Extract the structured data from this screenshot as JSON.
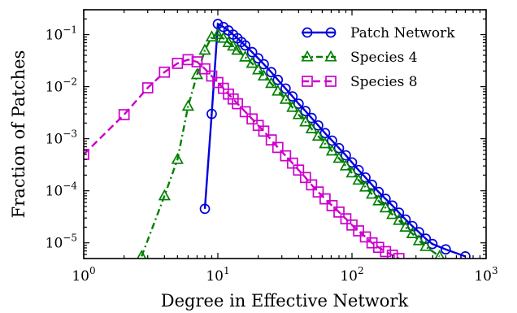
{
  "chart_data": {
    "type": "line",
    "title": "",
    "xlabel": "Degree in Effective Network",
    "ylabel": "Fraction of Patches",
    "xscale": "log",
    "yscale": "log",
    "xlim": [
      1,
      1000
    ],
    "ylim": [
      5e-06,
      0.3
    ],
    "x_ticks": [
      {
        "value": 1,
        "base": "10",
        "exp": "0"
      },
      {
        "value": 10,
        "base": "10",
        "exp": "1"
      },
      {
        "value": 100,
        "base": "10",
        "exp": "2"
      },
      {
        "value": 1000,
        "base": "10",
        "exp": "3"
      }
    ],
    "y_ticks": [
      {
        "value": 1e-05,
        "base": "10",
        "exp": "−5"
      },
      {
        "value": 0.0001,
        "base": "10",
        "exp": "−4"
      },
      {
        "value": 0.001,
        "base": "10",
        "exp": "−3"
      },
      {
        "value": 0.01,
        "base": "10",
        "exp": "−2"
      },
      {
        "value": 0.1,
        "base": "10",
        "exp": "−1"
      }
    ],
    "grid": false,
    "legend_position": "top-right",
    "series": [
      {
        "name": "Patch Network",
        "color": "#0000dd",
        "marker": "circle",
        "line_style": "solid",
        "x": [
          8,
          9,
          10,
          11,
          12,
          13,
          14,
          15,
          16,
          18,
          20,
          22,
          25,
          28,
          32,
          36,
          40,
          45,
          50,
          56,
          63,
          71,
          80,
          90,
          100,
          112,
          126,
          141,
          158,
          178,
          200,
          224,
          251,
          282,
          316,
          355,
          398,
          500,
          700
        ],
        "y": [
          4.5e-05,
          0.003,
          0.16,
          0.14,
          0.12,
          0.1,
          0.085,
          0.072,
          0.062,
          0.046,
          0.035,
          0.027,
          0.019,
          0.0135,
          0.0092,
          0.0065,
          0.0047,
          0.0034,
          0.0025,
          0.0018,
          0.00128,
          0.00092,
          0.00066,
          0.00048,
          0.00035,
          0.00025,
          0.00018,
          0.00013,
          9.5e-05,
          7e-05,
          5.2e-05,
          3.8e-05,
          2.8e-05,
          2.1e-05,
          1.6e-05,
          1.2e-05,
          9.5e-06,
          7.5e-06,
          5.5e-06
        ]
      },
      {
        "name": "Species 4",
        "color": "#008000",
        "marker": "triangle",
        "line_style": "dashdot",
        "x": [
          2.7,
          4,
          5,
          6,
          7,
          8,
          9,
          10,
          11,
          12,
          13,
          14,
          16,
          18,
          20,
          22,
          25,
          28,
          32,
          36,
          40,
          45,
          50,
          56,
          63,
          71,
          80,
          90,
          100,
          112,
          126,
          141,
          158,
          178,
          200,
          224,
          251,
          282,
          316,
          355,
          450
        ],
        "y": [
          5.5e-06,
          8e-05,
          0.0004,
          0.0042,
          0.017,
          0.05,
          0.09,
          0.1,
          0.085,
          0.07,
          0.06,
          0.05,
          0.037,
          0.028,
          0.021,
          0.016,
          0.0115,
          0.0082,
          0.0057,
          0.004,
          0.0029,
          0.0021,
          0.00155,
          0.00112,
          0.0008,
          0.00058,
          0.00042,
          0.0003,
          0.00022,
          0.00016,
          0.000118,
          8.6e-05,
          6.4e-05,
          4.7e-05,
          3.5e-05,
          2.7e-05,
          2e-05,
          1.5e-05,
          1.1e-05,
          8.5e-06,
          5.5e-06
        ]
      },
      {
        "name": "Species 8",
        "color": "#cc00cc",
        "marker": "square",
        "line_style": "dashed",
        "x": [
          1,
          2,
          3,
          4,
          5,
          6,
          7,
          8,
          9,
          10,
          11,
          12,
          13,
          14,
          16,
          18,
          20,
          22,
          25,
          28,
          32,
          36,
          40,
          45,
          50,
          56,
          63,
          71,
          80,
          90,
          100,
          112,
          126,
          141,
          158,
          178,
          200,
          224
        ],
        "y": [
          0.0005,
          0.0029,
          0.0095,
          0.019,
          0.028,
          0.033,
          0.03,
          0.022,
          0.016,
          0.012,
          0.0093,
          0.0072,
          0.0058,
          0.0047,
          0.0033,
          0.0024,
          0.0018,
          0.0014,
          0.00095,
          0.00068,
          0.00047,
          0.00034,
          0.00025,
          0.00018,
          0.00013,
          9.5e-05,
          7e-05,
          5.2e-05,
          3.9e-05,
          2.9e-05,
          2.2e-05,
          1.7e-05,
          1.3e-05,
          1e-05,
          8.2e-06,
          6.8e-06,
          5.8e-06,
          5e-06
        ]
      }
    ]
  }
}
